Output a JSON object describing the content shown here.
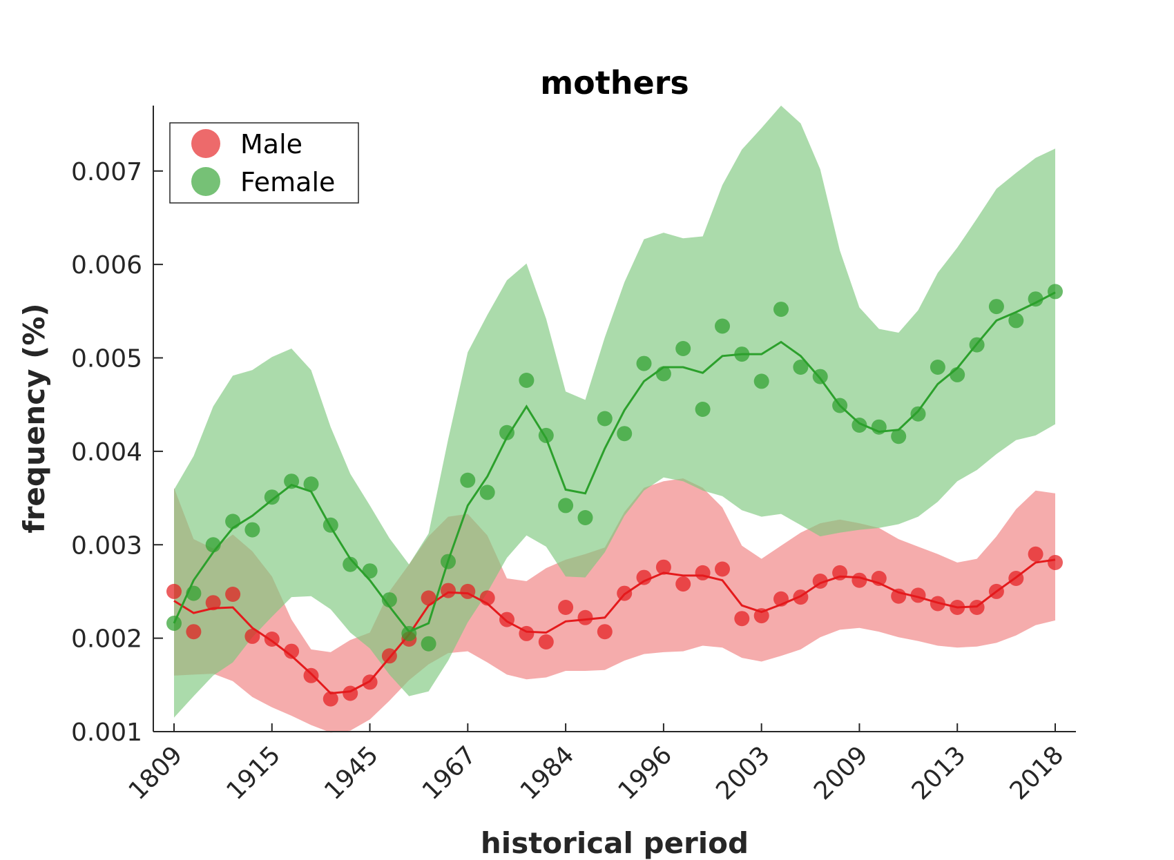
{
  "chart_data": {
    "type": "scatter",
    "title": "mothers",
    "xlabel": "historical period",
    "ylabel": "frequency (%)",
    "ylim": [
      0.001,
      0.0077
    ],
    "yticks": [
      0.001,
      0.002,
      0.003,
      0.004,
      0.005,
      0.006,
      0.007
    ],
    "ytick_labels": [
      "0.001",
      "0.002",
      "0.003",
      "0.004",
      "0.005",
      "0.006",
      "0.007"
    ],
    "xtick_labels": [
      "1809",
      "1915",
      "1945",
      "1967",
      "1984",
      "1996",
      "2003",
      "2009",
      "2013",
      "2018"
    ],
    "n_points": 46,
    "legend_position": "top-left",
    "grid": false,
    "series": [
      {
        "name": "Male",
        "color": "#e41a1c",
        "band_color": "#f08080",
        "points": [
          0.0025,
          0.00207,
          0.00238,
          0.00247,
          0.00202,
          0.00199,
          0.00186,
          0.0016,
          0.00135,
          0.00141,
          0.00153,
          0.00181,
          0.00199,
          0.00243,
          0.00251,
          0.0025,
          0.00243,
          0.0022,
          0.00205,
          0.00196,
          0.00233,
          0.00222,
          0.00207,
          0.00248,
          0.00265,
          0.00276,
          0.00258,
          0.0027,
          0.00274,
          0.00221,
          0.00224,
          0.00242,
          0.00244,
          0.00261,
          0.0027,
          0.00262,
          0.00264,
          0.00245,
          0.00246,
          0.00237,
          0.00233,
          0.00233,
          0.0025,
          0.00264,
          0.0029,
          0.00281
        ],
        "smooth": [
          0.0024,
          0.00227,
          0.00232,
          0.00233,
          0.00211,
          0.00197,
          0.00181,
          0.00162,
          0.00141,
          0.00143,
          0.00154,
          0.00179,
          0.00204,
          0.00235,
          0.00249,
          0.00248,
          0.00237,
          0.00218,
          0.00207,
          0.00206,
          0.00218,
          0.0022,
          0.00222,
          0.00247,
          0.00261,
          0.0027,
          0.00267,
          0.00267,
          0.00262,
          0.00235,
          0.00228,
          0.00236,
          0.00245,
          0.00259,
          0.00266,
          0.00265,
          0.00259,
          0.00249,
          0.00244,
          0.00238,
          0.00233,
          0.00234,
          0.0025,
          0.00265,
          0.00281,
          0.00284
        ],
        "lower": [
          0.0016,
          0.00161,
          0.00162,
          0.00154,
          0.00137,
          0.00126,
          0.00117,
          0.00107,
          0.00099,
          0.00101,
          0.00113,
          0.00133,
          0.00155,
          0.00172,
          0.00184,
          0.00186,
          0.00174,
          0.00161,
          0.00156,
          0.00158,
          0.00165,
          0.00165,
          0.00166,
          0.00176,
          0.00183,
          0.00185,
          0.00186,
          0.00192,
          0.0019,
          0.00179,
          0.00175,
          0.00181,
          0.00188,
          0.00201,
          0.00209,
          0.00211,
          0.00207,
          0.00201,
          0.00197,
          0.00192,
          0.0019,
          0.00191,
          0.00195,
          0.00203,
          0.00214,
          0.00219
        ],
        "upper": [
          0.00361,
          0.00306,
          0.00296,
          0.00311,
          0.00293,
          0.00266,
          0.0022,
          0.00188,
          0.00185,
          0.00198,
          0.00206,
          0.0025,
          0.00279,
          0.00309,
          0.0033,
          0.00333,
          0.0031,
          0.00264,
          0.00261,
          0.00275,
          0.00284,
          0.0029,
          0.00297,
          0.00335,
          0.00361,
          0.00368,
          0.00371,
          0.00361,
          0.0034,
          0.00299,
          0.00285,
          0.00299,
          0.00313,
          0.00323,
          0.00327,
          0.00323,
          0.00318,
          0.00306,
          0.00298,
          0.0029,
          0.00281,
          0.00285,
          0.00309,
          0.00338,
          0.00358,
          0.00355
        ]
      },
      {
        "name": "Female",
        "color": "#2ca02c",
        "band_color": "#7ec77e",
        "points": [
          0.00216,
          0.00248,
          0.003,
          0.00325,
          0.00316,
          0.00351,
          0.00368,
          0.00365,
          0.00321,
          0.00279,
          0.00272,
          0.00241,
          0.00205,
          0.00194,
          0.00282,
          0.00369,
          0.00356,
          0.0042,
          0.00476,
          0.00417,
          0.00342,
          0.00329,
          0.00435,
          0.00419,
          0.00494,
          0.00483,
          0.0051,
          0.00445,
          0.00534,
          0.00504,
          0.00475,
          0.00552,
          0.0049,
          0.0048,
          0.00449,
          0.00428,
          0.00426,
          0.00416,
          0.0044,
          0.0049,
          0.00482,
          0.00514,
          0.00555,
          0.0054,
          0.00563,
          0.00571
        ],
        "smooth": [
          0.00216,
          0.00262,
          0.00292,
          0.00318,
          0.00331,
          0.00348,
          0.00364,
          0.00357,
          0.00319,
          0.00285,
          0.00262,
          0.00234,
          0.00207,
          0.00216,
          0.00283,
          0.00342,
          0.00373,
          0.00415,
          0.00448,
          0.00414,
          0.00359,
          0.00355,
          0.00403,
          0.00444,
          0.00475,
          0.0049,
          0.0049,
          0.00484,
          0.00502,
          0.00504,
          0.00504,
          0.00517,
          0.00502,
          0.00478,
          0.00449,
          0.0043,
          0.00421,
          0.00423,
          0.00443,
          0.00472,
          0.00489,
          0.00515,
          0.0054,
          0.00549,
          0.00559,
          0.0057
        ],
        "lower": [
          0.00115,
          0.00138,
          0.0016,
          0.00174,
          0.00201,
          0.00223,
          0.00244,
          0.00245,
          0.00231,
          0.00206,
          0.00189,
          0.00161,
          0.00138,
          0.00143,
          0.00176,
          0.00217,
          0.00249,
          0.00286,
          0.0031,
          0.00298,
          0.00266,
          0.00265,
          0.00292,
          0.00331,
          0.00358,
          0.00372,
          0.00368,
          0.00358,
          0.00352,
          0.00337,
          0.0033,
          0.00333,
          0.00321,
          0.00309,
          0.00313,
          0.00316,
          0.00318,
          0.00322,
          0.0033,
          0.00346,
          0.00368,
          0.0038,
          0.00397,
          0.00412,
          0.00417,
          0.00429
        ],
        "upper": [
          0.00359,
          0.00395,
          0.00448,
          0.00481,
          0.00487,
          0.00501,
          0.0051,
          0.00487,
          0.00426,
          0.00376,
          0.00342,
          0.00307,
          0.00279,
          0.00312,
          0.00413,
          0.00506,
          0.00546,
          0.00583,
          0.00601,
          0.00542,
          0.00464,
          0.00455,
          0.00522,
          0.00581,
          0.00627,
          0.00634,
          0.00628,
          0.0063,
          0.00685,
          0.00723,
          0.00746,
          0.0077,
          0.00751,
          0.00702,
          0.00615,
          0.00554,
          0.00531,
          0.00527,
          0.00551,
          0.00591,
          0.00618,
          0.00649,
          0.00681,
          0.00698,
          0.00714,
          0.00724
        ]
      }
    ]
  }
}
